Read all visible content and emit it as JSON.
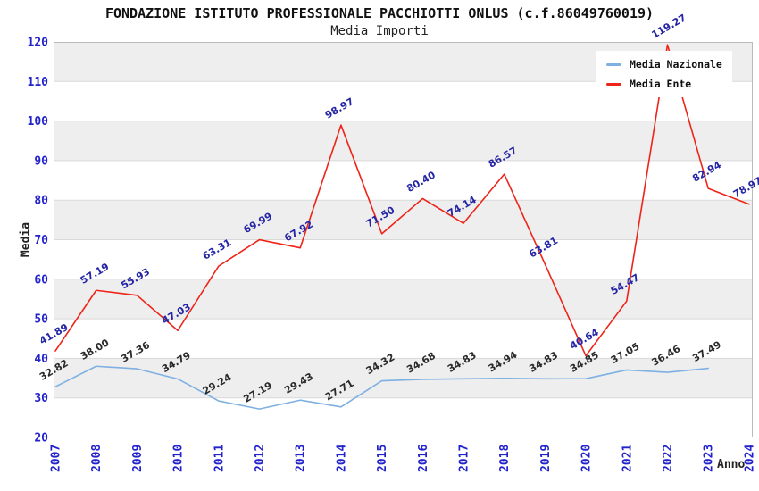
{
  "header": {
    "title": "FONDAZIONE ISTITUTO PROFESSIONALE PACCHIOTTI ONLUS (c.f.86049760019)",
    "subtitle": "Media Importi"
  },
  "chart_data": {
    "type": "line",
    "title": "FONDAZIONE ISTITUTO PROFESSIONALE PACCHIOTTI ONLUS (c.f.86049760019)",
    "subtitle": "Media Importi",
    "xlabel": "Anno",
    "ylabel": "Media",
    "ylim": [
      20,
      120
    ],
    "ytick_step": 10,
    "yticks": [
      20,
      30,
      40,
      50,
      60,
      70,
      80,
      90,
      100,
      110,
      120
    ],
    "grid": "horizontal-lines-with-alternating-bands",
    "legend_position": "top-right-inside",
    "categories": [
      "2007",
      "2008",
      "2009",
      "2010",
      "2011",
      "2012",
      "2013",
      "2014",
      "2015",
      "2016",
      "2017",
      "2018",
      "2019",
      "2020",
      "2021",
      "2022",
      "2023",
      "2024"
    ],
    "series": [
      {
        "name": "Media Nazionale",
        "color": "#7fb0e2",
        "label_color": "#2a2a2a",
        "values": [
          "32.82",
          "38.00",
          "37.36",
          "34.79",
          "29.24",
          "27.19",
          "29.43",
          "27.71",
          "34.32",
          "34.68",
          "34.83",
          "34.94",
          "34.83",
          "34.85",
          "37.05",
          "36.46",
          "37.49",
          null
        ]
      },
      {
        "name": "Media Ente",
        "color": "#ee2419",
        "label_color": "#2525a5",
        "values": [
          "41.89",
          "57.19",
          "55.93",
          "47.03",
          "63.31",
          "69.99",
          "67.92",
          "98.97",
          "71.50",
          "80.40",
          "74.14",
          "86.57",
          "63.81",
          "40.64",
          "54.47",
          "119.27",
          "82.94",
          "78.97"
        ]
      }
    ],
    "colors": {
      "tick_label": "#2323cc",
      "band_fill": "#eeeeee",
      "grid_line": "#d9d9d9",
      "plot_border": "#bbbbbb",
      "background": "#ffffff"
    }
  }
}
